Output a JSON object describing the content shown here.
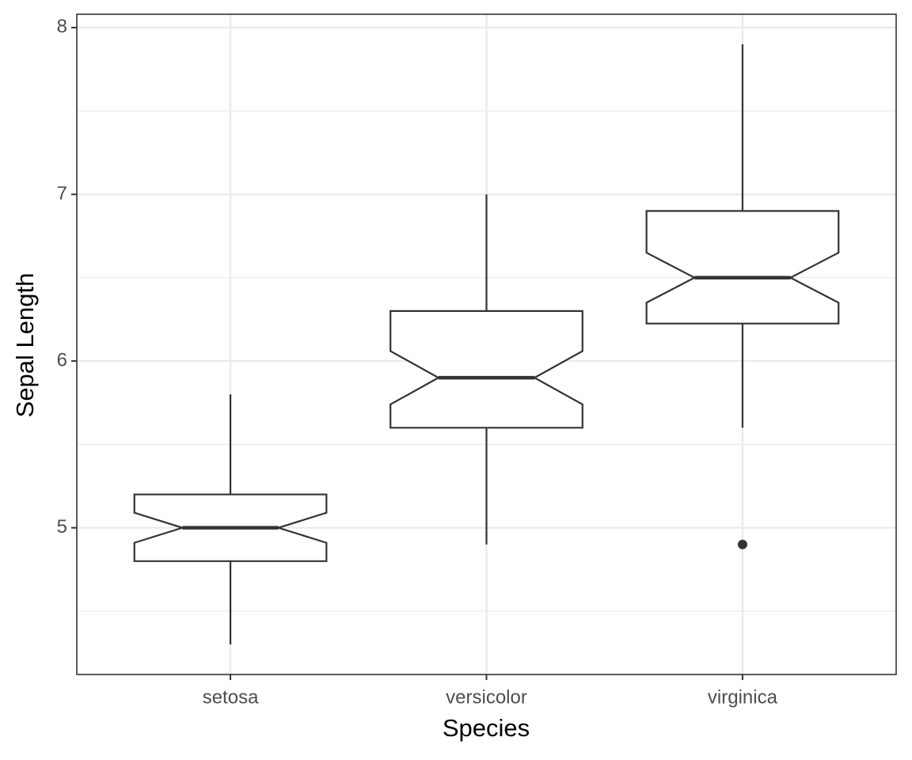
{
  "chart_data": {
    "type": "box",
    "xlabel": "Species",
    "ylabel": "Sepal Length",
    "categories": [
      "setosa",
      "versicolor",
      "virginica"
    ],
    "boxes": [
      {
        "min": 4.3,
        "q1": 4.8,
        "median": 5.0,
        "q3": 5.2,
        "max": 5.8,
        "notch": [
          4.91,
          5.09
        ],
        "outliers": []
      },
      {
        "min": 4.9,
        "q1": 5.6,
        "median": 5.9,
        "q3": 6.3,
        "max": 7.0,
        "notch": [
          5.74,
          6.06
        ],
        "outliers": []
      },
      {
        "min": 5.6,
        "q1": 6.225,
        "median": 6.5,
        "q3": 6.9,
        "max": 7.9,
        "notch": [
          6.35,
          6.65
        ],
        "outliers": [
          4.9
        ]
      }
    ],
    "color": "#333333",
    "ylim": [
      4.12,
      8.08
    ],
    "yticks": [
      5,
      6,
      7,
      8
    ],
    "yminor": [
      4.5,
      5.5,
      6.5,
      7.5
    ],
    "grid": true
  }
}
